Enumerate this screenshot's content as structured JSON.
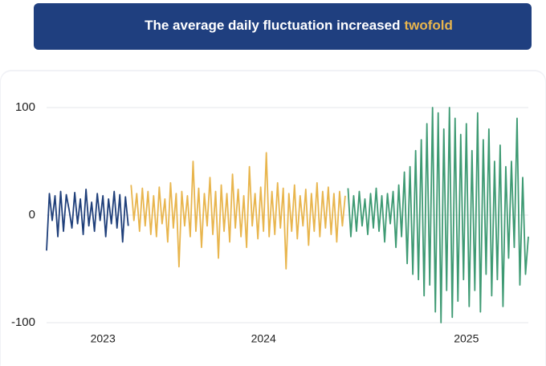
{
  "chart_data": {
    "type": "line",
    "title": "The average daily fluctuation increased",
    "title_highlight": "twofold",
    "categories": [
      null,
      null,
      null,
      null,
      null,
      null,
      null,
      null,
      null,
      null,
      null,
      null,
      null,
      null,
      null,
      null,
      null,
      null,
      null,
      null,
      "2023",
      null,
      null,
      null,
      null,
      null,
      null,
      null,
      null,
      null,
      null,
      null,
      null,
      null,
      null,
      null,
      null,
      null,
      null,
      null,
      null,
      null,
      null,
      null,
      null,
      null,
      null,
      null,
      null,
      null,
      null,
      null,
      null,
      null,
      null,
      null,
      null,
      null,
      null,
      null,
      null,
      null,
      null,
      null,
      null,
      null,
      null,
      null,
      null,
      null,
      null,
      null,
      null,
      null,
      null,
      null,
      null,
      "2024",
      null,
      null,
      null,
      null,
      null,
      null,
      null,
      null,
      null,
      null,
      null,
      null,
      null,
      null,
      null,
      null,
      null,
      null,
      null,
      null,
      null,
      null,
      null,
      null,
      null,
      null,
      null,
      null,
      null,
      null,
      null,
      null,
      null,
      null,
      null,
      null,
      null,
      null,
      null,
      null,
      null,
      null,
      null,
      null,
      null,
      null,
      null,
      null,
      null,
      null,
      null,
      null,
      null,
      null,
      null,
      null,
      null,
      null,
      null,
      null,
      null,
      null,
      null,
      null,
      null,
      null,
      null,
      null,
      null,
      null,
      null,
      "2025",
      null,
      null,
      null,
      null,
      null,
      null,
      null,
      null,
      null,
      null,
      null,
      null,
      null,
      null,
      null,
      null,
      null,
      null,
      null,
      null,
      null,
      null
    ],
    "series": [
      {
        "color": "#1f3f7a",
        "values": [
          -33,
          20,
          -5,
          18,
          -20,
          22,
          -15,
          19,
          5,
          -12,
          21,
          -8,
          15,
          -18,
          24,
          -10,
          12,
          -15,
          20,
          -5,
          18,
          -20,
          15,
          -8,
          22,
          -12,
          19,
          -25,
          17,
          -10,
          null,
          null,
          null,
          null,
          null,
          null,
          null,
          null,
          null,
          null,
          null,
          null,
          null,
          null,
          null,
          null,
          null,
          null,
          null,
          null,
          null,
          null,
          null,
          null,
          null,
          null,
          null,
          null,
          null,
          null,
          null,
          null,
          null,
          null,
          null,
          null,
          null,
          null,
          null,
          null,
          null,
          null,
          null,
          null,
          null,
          null,
          null,
          null,
          null,
          null,
          null,
          null,
          null,
          null,
          null,
          null,
          null,
          null,
          null,
          null,
          null,
          null,
          null,
          null,
          null,
          null,
          null,
          null,
          null,
          null,
          null,
          null,
          null,
          null,
          null,
          null,
          null,
          null,
          null,
          null,
          null,
          null,
          null,
          null,
          null,
          null,
          null,
          null,
          null,
          null,
          null,
          null,
          null,
          null,
          null,
          null,
          null,
          null,
          null,
          null,
          null,
          null,
          null,
          null,
          null,
          null,
          null,
          null,
          null,
          null,
          null,
          null,
          null,
          null,
          null,
          null,
          null,
          null,
          null,
          null,
          null,
          null,
          null,
          null,
          null,
          null,
          null,
          null,
          null,
          null,
          null,
          null,
          null,
          null,
          null,
          null,
          null,
          null,
          null,
          null,
          null,
          null
        ]
      },
      {
        "color": "#e8b54d",
        "values": [
          null,
          null,
          null,
          null,
          null,
          null,
          null,
          null,
          null,
          null,
          null,
          null,
          null,
          null,
          null,
          null,
          null,
          null,
          null,
          null,
          null,
          null,
          null,
          null,
          null,
          null,
          null,
          null,
          null,
          null,
          28,
          -5,
          20,
          -15,
          25,
          -10,
          22,
          -18,
          18,
          -20,
          26,
          -8,
          15,
          -25,
          30,
          -12,
          20,
          -48,
          22,
          -10,
          18,
          -20,
          50,
          -15,
          25,
          -30,
          20,
          -10,
          35,
          -18,
          22,
          -40,
          28,
          -15,
          20,
          -25,
          38,
          -12,
          24,
          -20,
          18,
          -30,
          45,
          -10,
          20,
          -22,
          26,
          -15,
          58,
          -20,
          22,
          -18,
          30,
          -12,
          25,
          -50,
          20,
          -15,
          28,
          -22,
          18,
          -10,
          24,
          -28,
          20,
          -15,
          30,
          -20,
          22,
          -12,
          26,
          -18,
          20,
          -25,
          22,
          -10,
          18,
          null,
          null,
          null,
          null,
          null,
          null,
          null,
          null,
          null,
          null,
          null,
          null,
          null,
          null,
          null,
          null,
          null,
          null,
          null,
          null,
          null,
          null,
          null,
          null,
          null,
          null,
          null,
          null,
          null,
          null,
          null,
          null,
          null,
          null,
          null,
          null,
          null,
          null,
          null,
          null,
          null,
          null,
          null,
          null,
          null,
          null,
          null,
          null,
          null,
          null,
          null,
          null,
          null,
          null,
          null,
          null,
          null,
          null,
          null,
          null,
          null,
          null,
          null,
          null,
          null
        ]
      },
      {
        "color": "#3e9a73",
        "values": [
          null,
          null,
          null,
          null,
          null,
          null,
          null,
          null,
          null,
          null,
          null,
          null,
          null,
          null,
          null,
          null,
          null,
          null,
          null,
          null,
          null,
          null,
          null,
          null,
          null,
          null,
          null,
          null,
          null,
          null,
          null,
          null,
          null,
          null,
          null,
          null,
          null,
          null,
          null,
          null,
          null,
          null,
          null,
          null,
          null,
          null,
          null,
          null,
          null,
          null,
          null,
          null,
          null,
          null,
          null,
          null,
          null,
          null,
          null,
          null,
          null,
          null,
          null,
          null,
          null,
          null,
          null,
          null,
          null,
          null,
          null,
          null,
          null,
          null,
          null,
          null,
          null,
          null,
          null,
          null,
          null,
          null,
          null,
          null,
          null,
          null,
          null,
          null,
          null,
          null,
          null,
          null,
          null,
          null,
          null,
          null,
          null,
          null,
          null,
          null,
          null,
          null,
          null,
          null,
          null,
          null,
          null,
          25,
          -20,
          18,
          -15,
          22,
          -10,
          15,
          -18,
          20,
          -12,
          25,
          -15,
          18,
          -25,
          20,
          -8,
          22,
          -30,
          28,
          -20,
          40,
          -45,
          45,
          -55,
          60,
          -60,
          70,
          -75,
          85,
          -65,
          100,
          -90,
          95,
          -100,
          80,
          -70,
          100,
          -95,
          90,
          -80,
          75,
          -60,
          85,
          -85,
          60,
          -70,
          95,
          -90,
          70,
          -55,
          80,
          -75,
          50,
          -60,
          65,
          -85,
          45,
          -40,
          50,
          -30,
          90,
          -65,
          35,
          -55,
          -20
        ]
      }
    ],
    "ylim": [
      -100,
      100
    ],
    "yticks": [
      -100,
      0,
      100
    ],
    "grid": true
  }
}
